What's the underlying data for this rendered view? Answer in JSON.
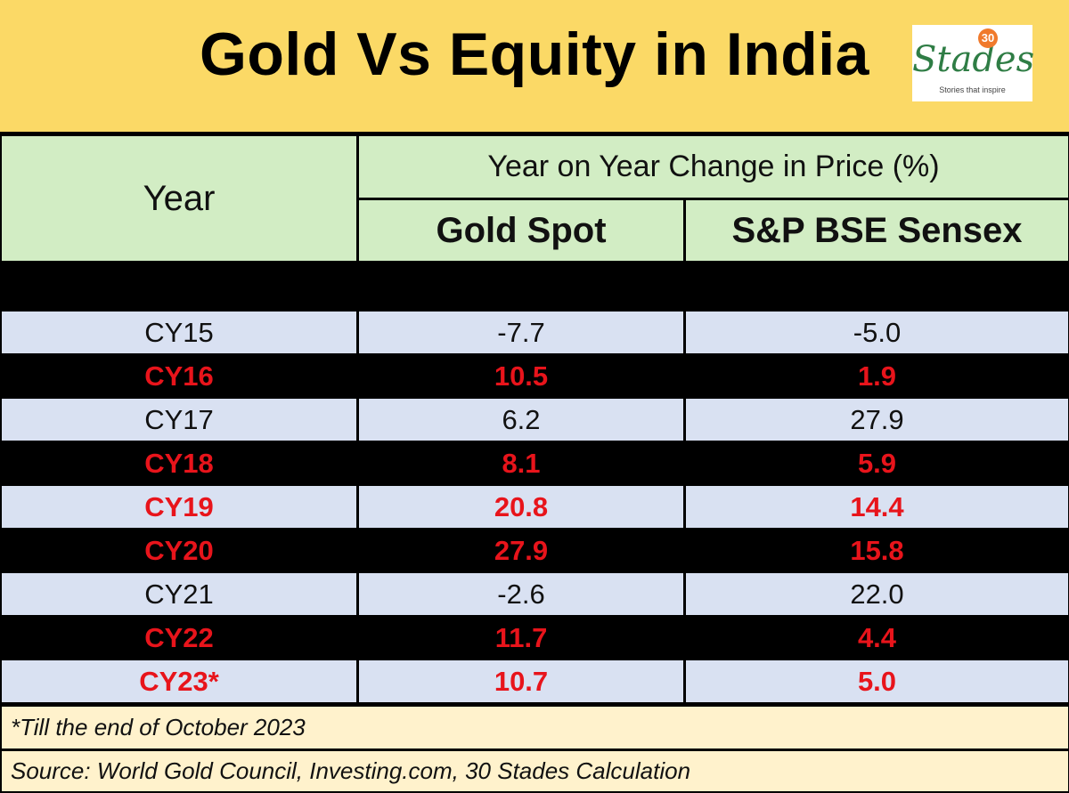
{
  "title": "Gold Vs Equity in India",
  "logo": {
    "number": "30",
    "word": "Stades",
    "tagline": "Stories that inspire"
  },
  "chart_data": {
    "type": "table",
    "title": "Gold Vs Equity in India",
    "header_group": "Year on Year Change in Price (%)",
    "columns": [
      "Year",
      "Gold Spot",
      "S&P BSE Sensex"
    ],
    "rows": [
      {
        "year": "CY15",
        "gold": "-7.7",
        "sensex": "-5.0",
        "highlight": false
      },
      {
        "year": "CY16",
        "gold": "10.5",
        "sensex": "1.9",
        "highlight": true
      },
      {
        "year": "CY17",
        "gold": "6.2",
        "sensex": "27.9",
        "highlight": false
      },
      {
        "year": "CY18",
        "gold": "8.1",
        "sensex": "5.9",
        "highlight": true
      },
      {
        "year": "CY19",
        "gold": "20.8",
        "sensex": "14.4",
        "highlight": true
      },
      {
        "year": "CY20",
        "gold": "27.9",
        "sensex": "15.8",
        "highlight": true
      },
      {
        "year": "CY21",
        "gold": "-2.6",
        "sensex": "22.0",
        "highlight": false
      },
      {
        "year": "CY22",
        "gold": "11.7",
        "sensex": "4.4",
        "highlight": true
      },
      {
        "year": "CY23*",
        "gold": "10.7",
        "sensex": "5.0",
        "highlight": true
      }
    ]
  },
  "footnote": "*Till the end of October 2023",
  "source": "Source: World Gold Council, Investing.com, 30 Stades Calculation",
  "colors": {
    "title_bg": "#fbd966",
    "header_bg": "#d2edc4",
    "row_light_bg": "#d9e1f2",
    "row_dark_bg": "#000000",
    "highlight_text": "#e8141b",
    "footer_bg": "#fff2cc"
  }
}
